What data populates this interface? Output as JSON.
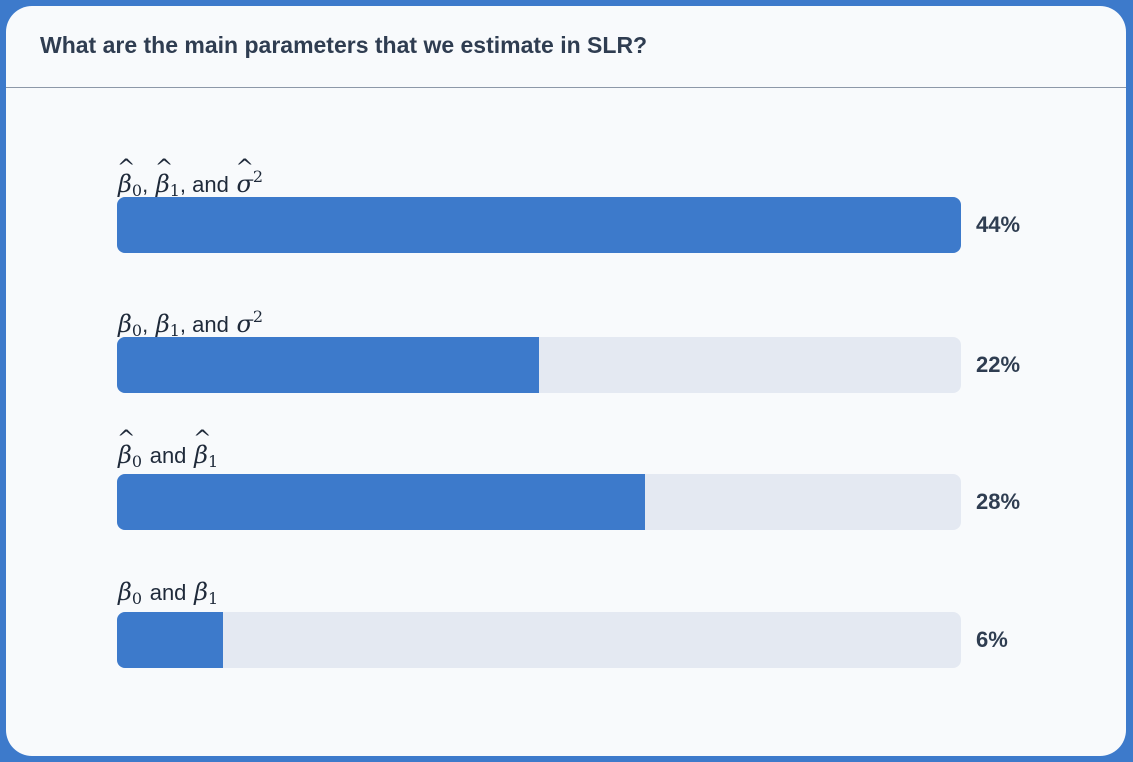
{
  "question": "What are the main parameters that we estimate in SLR?",
  "chart_data": {
    "type": "bar",
    "orientation": "horizontal",
    "title": "What are the main parameters that we estimate in SLR?",
    "categories": [
      "β̂0, β̂1, and σ̂2",
      "β0, β1, and σ2",
      "β̂0 and β̂1",
      "β0 and β1"
    ],
    "values": [
      44,
      22,
      28,
      6
    ],
    "value_labels": [
      "44%",
      "22%",
      "28%",
      "6%"
    ],
    "fill_fraction": [
      1.0,
      0.5,
      0.625,
      0.125
    ],
    "unit": "%",
    "grid": false,
    "legend": "none",
    "bar_color": "#3d7acb",
    "track_color": "#e4e9f2"
  },
  "options": [
    {
      "sep1": ",",
      "sep2": ", and",
      "word": "and",
      "value_label": "44%"
    },
    {
      "sep1": ",",
      "sep2": ", and",
      "word": "and",
      "value_label": "22%"
    },
    {
      "word": "and",
      "value_label": "28%"
    },
    {
      "word": "and",
      "value_label": "6%"
    }
  ],
  "math": {
    "beta": "β",
    "sigma": "σ",
    "hat": "^",
    "sub0": "0",
    "sub1": "1",
    "sup2": "2"
  }
}
